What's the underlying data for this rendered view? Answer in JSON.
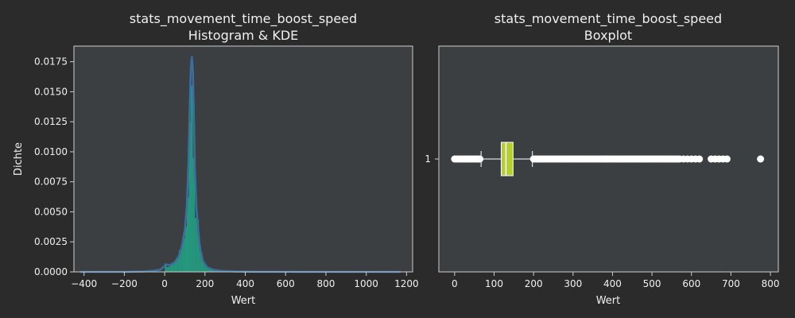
{
  "colors": {
    "figure_bg": "#2b2b2b",
    "axes_bg": "#3b3f42",
    "spine": "#cccccc",
    "text": "#f0f0f0",
    "hist_fill": "#22a184",
    "kde_line": "#3b6e9e",
    "box_fill": "#b5cf2b",
    "box_edge": "#ffffff",
    "flier": "#ffffff"
  },
  "chart_data": [
    {
      "type": "area",
      "title_line1": "stats_movement_time_boost_speed",
      "title_line2": "Histogram & KDE",
      "xlabel": "Wert",
      "ylabel": "Dichte",
      "xlim": [
        -450,
        1230
      ],
      "ylim": [
        0,
        0.0188
      ],
      "x_ticks": [
        -400,
        -200,
        0,
        200,
        400,
        600,
        800,
        1000,
        1200
      ],
      "x_tick_labels": [
        "−400",
        "−200",
        "0",
        "200",
        "400",
        "600",
        "800",
        "1000",
        "1200"
      ],
      "y_ticks": [
        0,
        0.0025,
        0.005,
        0.0075,
        0.01,
        0.0125,
        0.015,
        0.0175
      ],
      "y_tick_labels": [
        "0.0000",
        "0.0025",
        "0.0050",
        "0.0075",
        "0.0100",
        "0.0125",
        "0.0150",
        "0.0175"
      ],
      "grid": false,
      "histogram": {
        "bins": [
          {
            "x0": 0,
            "x1": 10,
            "density": 0.0007
          },
          {
            "x0": 10,
            "x1": 20,
            "density": 0.0004
          },
          {
            "x0": 20,
            "x1": 30,
            "density": 0.0005
          },
          {
            "x0": 30,
            "x1": 40,
            "density": 0.0006
          },
          {
            "x0": 40,
            "x1": 50,
            "density": 0.0008
          },
          {
            "x0": 50,
            "x1": 60,
            "density": 0.0009
          },
          {
            "x0": 60,
            "x1": 70,
            "density": 0.0012
          },
          {
            "x0": 70,
            "x1": 80,
            "density": 0.0018
          },
          {
            "x0": 80,
            "x1": 90,
            "density": 0.0022
          },
          {
            "x0": 90,
            "x1": 100,
            "density": 0.0028
          },
          {
            "x0": 100,
            "x1": 110,
            "density": 0.0038
          },
          {
            "x0": 110,
            "x1": 120,
            "density": 0.0062
          },
          {
            "x0": 120,
            "x1": 130,
            "density": 0.0125
          },
          {
            "x0": 130,
            "x1": 140,
            "density": 0.0155
          },
          {
            "x0": 140,
            "x1": 150,
            "density": 0.0095
          },
          {
            "x0": 150,
            "x1": 160,
            "density": 0.0045
          },
          {
            "x0": 160,
            "x1": 170,
            "density": 0.0043
          },
          {
            "x0": 170,
            "x1": 180,
            "density": 0.0022
          },
          {
            "x0": 180,
            "x1": 190,
            "density": 0.0012
          },
          {
            "x0": 190,
            "x1": 200,
            "density": 0.0008
          },
          {
            "x0": 200,
            "x1": 210,
            "density": 0.0005
          },
          {
            "x0": 210,
            "x1": 220,
            "density": 0.0004
          },
          {
            "x0": 220,
            "x1": 230,
            "density": 0.0003
          },
          {
            "x0": 230,
            "x1": 240,
            "density": 0.0002
          },
          {
            "x0": 240,
            "x1": 250,
            "density": 0.00015
          },
          {
            "x0": 250,
            "x1": 260,
            "density": 0.0001
          },
          {
            "x0": 260,
            "x1": 280,
            "density": 8e-05
          },
          {
            "x0": 280,
            "x1": 300,
            "density": 5e-05
          },
          {
            "x0": 300,
            "x1": 350,
            "density": 3e-05
          }
        ]
      },
      "kde": {
        "x": [
          -420,
          -200,
          -100,
          -50,
          -20,
          0,
          10,
          30,
          50,
          70,
          85,
          100,
          110,
          118,
          125,
          130,
          135,
          140,
          145,
          150,
          158,
          165,
          175,
          190,
          210,
          240,
          280,
          350,
          450,
          600,
          800,
          1000,
          1170
        ],
        "y": [
          0.0,
          0.0,
          3e-05,
          0.0001,
          0.0002,
          0.0005,
          0.0006,
          0.0006,
          0.0008,
          0.0013,
          0.0021,
          0.0035,
          0.0055,
          0.009,
          0.014,
          0.017,
          0.0179,
          0.0168,
          0.013,
          0.0085,
          0.0052,
          0.0038,
          0.002,
          0.0009,
          0.0004,
          0.00018,
          8e-05,
          3e-05,
          1e-05,
          5e-06,
          0.0,
          0.0,
          0.0
        ]
      }
    },
    {
      "type": "box",
      "title_line1": "stats_movement_time_boost_speed",
      "title_line2": "Boxplot",
      "xlabel": "Wert",
      "xlim": [
        -40,
        820
      ],
      "x_ticks": [
        0,
        100,
        200,
        300,
        400,
        500,
        600,
        700,
        800
      ],
      "x_tick_labels": [
        "0",
        "100",
        "200",
        "300",
        "400",
        "500",
        "600",
        "700",
        "800"
      ],
      "y_tick_labels": [
        "1"
      ],
      "box": {
        "category": "1",
        "whisker_low": 67,
        "q1": 118,
        "median": 130,
        "q3": 148,
        "whisker_high": 197,
        "fliers_low": [
          0,
          5,
          10,
          15,
          20,
          25,
          30,
          35,
          40,
          45,
          50,
          55,
          60,
          64
        ],
        "fliers_high": [
          200,
          205,
          210,
          215,
          220,
          225,
          230,
          235,
          240,
          245,
          250,
          255,
          260,
          265,
          270,
          275,
          280,
          285,
          290,
          295,
          300,
          305,
          310,
          315,
          320,
          325,
          330,
          335,
          340,
          345,
          350,
          355,
          360,
          365,
          370,
          375,
          380,
          385,
          390,
          395,
          400,
          405,
          410,
          415,
          420,
          425,
          430,
          435,
          440,
          445,
          450,
          455,
          460,
          465,
          470,
          475,
          480,
          485,
          490,
          495,
          500,
          505,
          510,
          515,
          520,
          525,
          530,
          535,
          540,
          545,
          550,
          555,
          560,
          565,
          570,
          580,
          590,
          600,
          610,
          620,
          650,
          660,
          670,
          680,
          690,
          775
        ]
      }
    }
  ]
}
